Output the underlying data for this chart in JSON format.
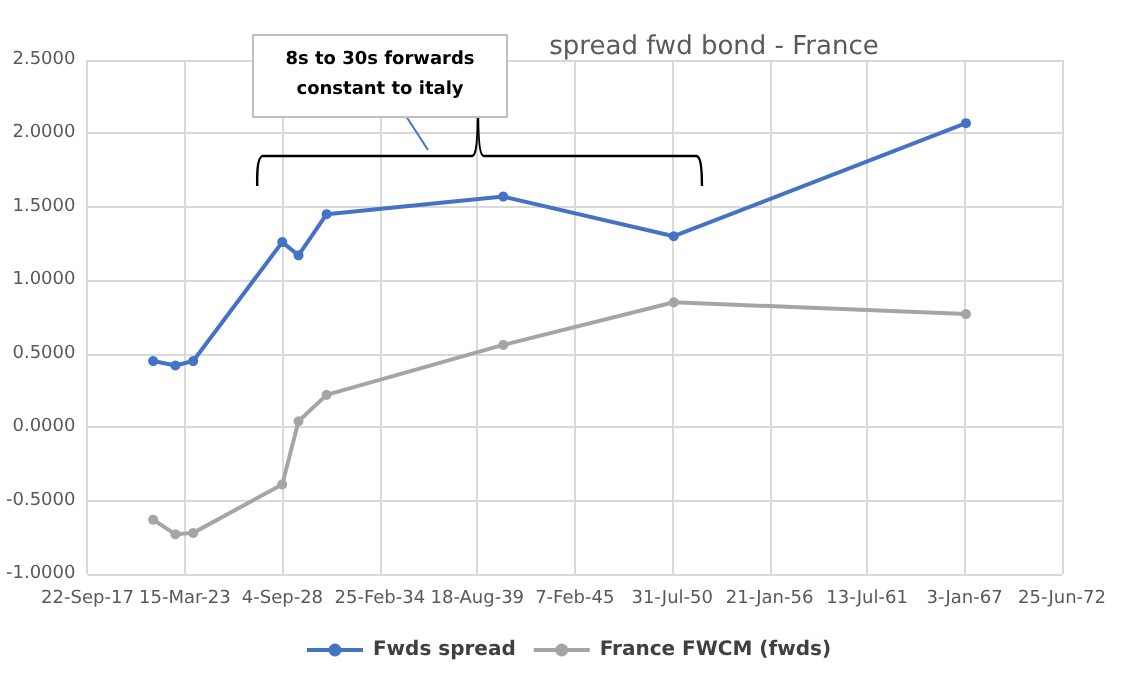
{
  "chart_data": {
    "type": "line",
    "title": "spread fwd bond - France",
    "x": [
      "2021-06",
      "2022-09",
      "2023-09",
      "2028-09",
      "2029-08",
      "2031-03",
      "2041-02",
      "2050-09",
      "2067-02"
    ],
    "series": [
      {
        "name": "Fwds spread",
        "color": "#4472c4",
        "values": [
          0.45,
          0.42,
          0.45,
          1.26,
          1.17,
          1.45,
          1.57,
          1.3,
          2.07
        ]
      },
      {
        "name": "France FWCM (fwds)",
        "color": "#a5a5a5",
        "values": [
          -0.63,
          -0.73,
          -0.72,
          -0.39,
          0.04,
          0.22,
          0.56,
          0.85,
          0.77
        ]
      }
    ],
    "xlim": [
      "2017-09-22",
      "2072-06-25"
    ],
    "xticks": [
      {
        "value": "2017-09-22",
        "label": "22-Sep-17"
      },
      {
        "value": "2023-03-15",
        "label": "15-Mar-23"
      },
      {
        "value": "2028-09-04",
        "label": "4-Sep-28"
      },
      {
        "value": "2034-02-25",
        "label": "25-Feb-34"
      },
      {
        "value": "2039-08-18",
        "label": "18-Aug-39"
      },
      {
        "value": "2045-02-07",
        "label": "7-Feb-45"
      },
      {
        "value": "2050-07-31",
        "label": "31-Jul-50"
      },
      {
        "value": "2056-01-21",
        "label": "21-Jan-56"
      },
      {
        "value": "2061-07-13",
        "label": "13-Jul-61"
      },
      {
        "value": "2067-01-03",
        "label": "3-Jan-67"
      },
      {
        "value": "2072-06-25",
        "label": "25-Jun-72"
      }
    ],
    "ylim": [
      -1,
      2.5
    ],
    "yticks": [
      {
        "value": -1,
        "label": "-1.0000"
      },
      {
        "value": -0.5,
        "label": "-0.5000"
      },
      {
        "value": 0,
        "label": "0.0000"
      },
      {
        "value": 0.5,
        "label": "0.5000"
      },
      {
        "value": 1,
        "label": "1.0000"
      },
      {
        "value": 1.5,
        "label": "1.5000"
      },
      {
        "value": 2,
        "label": "2.0000"
      },
      {
        "value": 2.5,
        "label": "2.5000"
      }
    ],
    "grid": true,
    "legend": "bottom",
    "marker": "circle",
    "line_style": "solid",
    "annotations": [
      "8s to 30s forwards\nconstant to italy"
    ]
  }
}
